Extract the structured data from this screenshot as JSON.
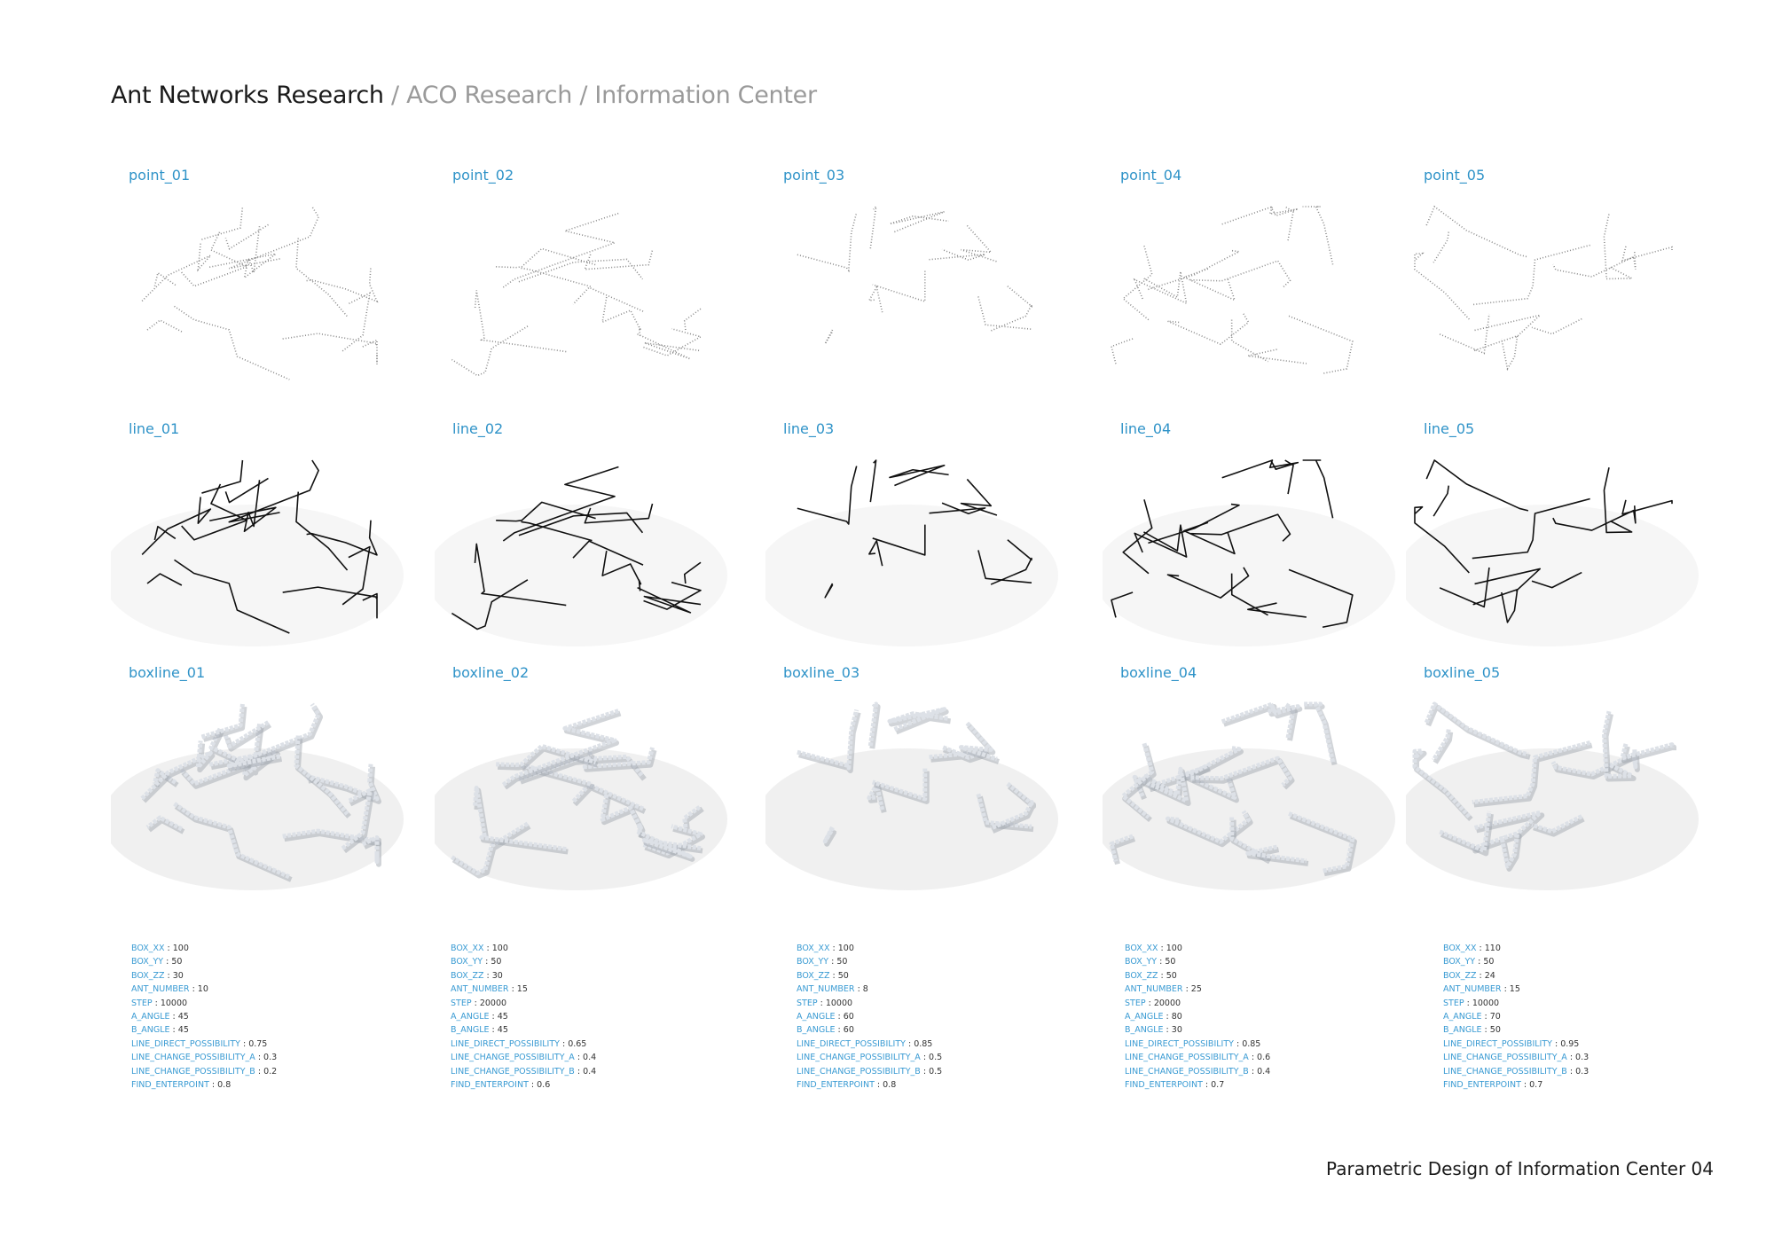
{
  "header": {
    "title": "Ant Networks Research",
    "separator": "/",
    "crumbs": [
      "ACO Research",
      "Information Center"
    ]
  },
  "footer": "Parametric Design of Information Center 04",
  "rows": {
    "point": [
      "point_01",
      "point_02",
      "point_03",
      "point_04",
      "point_05"
    ],
    "line": [
      "line_01",
      "line_02",
      "line_03",
      "line_04",
      "line_05"
    ],
    "boxline": [
      "boxline_01",
      "boxline_02",
      "boxline_03",
      "boxline_04",
      "boxline_05"
    ]
  },
  "params": [
    [
      {
        "key": "BOX_XX",
        "value": "100"
      },
      {
        "key": "BOX_YY",
        "value": "50"
      },
      {
        "key": "BOX_ZZ",
        "value": "30"
      },
      {
        "key": "ANT_NUMBER",
        "value": "10"
      },
      {
        "key": "STEP",
        "value": "10000"
      },
      {
        "key": "A_ANGLE",
        "value": "45"
      },
      {
        "key": "B_ANGLE",
        "value": "45"
      },
      {
        "key": "LINE_DIRECT_POSSIBILITY",
        "value": "0.75"
      },
      {
        "key": "LINE_CHANGE_POSSIBILITY_A",
        "value": "0.3"
      },
      {
        "key": "LINE_CHANGE_POSSIBILITY_B",
        "value": "0.2"
      },
      {
        "key": "FIND_ENTERPOINT",
        "value": "0.8"
      }
    ],
    [
      {
        "key": "BOX_XX",
        "value": "100"
      },
      {
        "key": "BOX_YY",
        "value": "50"
      },
      {
        "key": "BOX_ZZ",
        "value": "30"
      },
      {
        "key": "ANT_NUMBER",
        "value": "15"
      },
      {
        "key": "STEP",
        "value": "20000"
      },
      {
        "key": "A_ANGLE",
        "value": "45"
      },
      {
        "key": "B_ANGLE",
        "value": "45"
      },
      {
        "key": "LINE_DIRECT_POSSIBILITY",
        "value": "0.65"
      },
      {
        "key": "LINE_CHANGE_POSSIBILITY_A",
        "value": "0.4"
      },
      {
        "key": "LINE_CHANGE_POSSIBILITY_B",
        "value": "0.4"
      },
      {
        "key": "FIND_ENTERPOINT",
        "value": "0.6"
      }
    ],
    [
      {
        "key": "BOX_XX",
        "value": "100"
      },
      {
        "key": "BOX_YY",
        "value": "50"
      },
      {
        "key": "BOX_ZZ",
        "value": "50"
      },
      {
        "key": "ANT_NUMBER",
        "value": "8"
      },
      {
        "key": "STEP",
        "value": "10000"
      },
      {
        "key": "A_ANGLE",
        "value": "60"
      },
      {
        "key": "B_ANGLE",
        "value": "60"
      },
      {
        "key": "LINE_DIRECT_POSSIBILITY",
        "value": "0.85"
      },
      {
        "key": "LINE_CHANGE_POSSIBILITY_A",
        "value": "0.5"
      },
      {
        "key": "LINE_CHANGE_POSSIBILITY_B",
        "value": "0.5"
      },
      {
        "key": "FIND_ENTERPOINT",
        "value": "0.8"
      }
    ],
    [
      {
        "key": "BOX_XX",
        "value": "100"
      },
      {
        "key": "BOX_YY",
        "value": "50"
      },
      {
        "key": "BOX_ZZ",
        "value": "50"
      },
      {
        "key": "ANT_NUMBER",
        "value": "25"
      },
      {
        "key": "STEP",
        "value": "20000"
      },
      {
        "key": "A_ANGLE",
        "value": "80"
      },
      {
        "key": "B_ANGLE",
        "value": "30"
      },
      {
        "key": "LINE_DIRECT_POSSIBILITY",
        "value": "0.85"
      },
      {
        "key": "LINE_CHANGE_POSSIBILITY_A",
        "value": "0.6"
      },
      {
        "key": "LINE_CHANGE_POSSIBILITY_B",
        "value": "0.4"
      },
      {
        "key": "FIND_ENTERPOINT",
        "value": "0.7"
      }
    ],
    [
      {
        "key": "BOX_XX",
        "value": "110"
      },
      {
        "key": "BOX_YY",
        "value": "50"
      },
      {
        "key": "BOX_ZZ",
        "value": "24"
      },
      {
        "key": "ANT_NUMBER",
        "value": "15"
      },
      {
        "key": "STEP",
        "value": "10000"
      },
      {
        "key": "A_ANGLE",
        "value": "70"
      },
      {
        "key": "B_ANGLE",
        "value": "50"
      },
      {
        "key": "LINE_DIRECT_POSSIBILITY",
        "value": "0.95"
      },
      {
        "key": "LINE_CHANGE_POSSIBILITY_A",
        "value": "0.3"
      },
      {
        "key": "LINE_CHANGE_POSSIBILITY_B",
        "value": "0.3"
      },
      {
        "key": "FIND_ENTERPOINT",
        "value": "0.7"
      }
    ]
  ]
}
